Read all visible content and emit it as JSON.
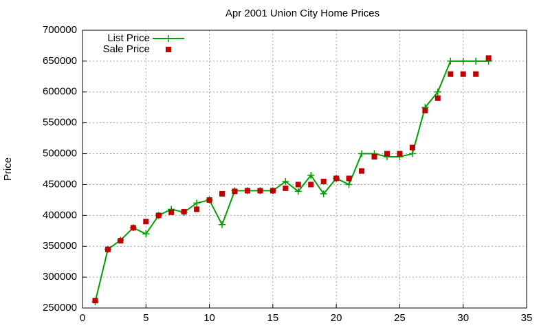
{
  "chart_data": {
    "type": "line",
    "title": "Apr 2001 Union City Home Prices",
    "y_label": "Price",
    "x": [
      1,
      2,
      3,
      4,
      5,
      6,
      7,
      8,
      9,
      10,
      11,
      12,
      13,
      14,
      15,
      16,
      17,
      18,
      19,
      20,
      21,
      22,
      23,
      24,
      25,
      26,
      27,
      28,
      29,
      30,
      31,
      32
    ],
    "series": [
      {
        "name": "List Price",
        "color": "#00a000",
        "line": true,
        "marker": "plus",
        "values": [
          260000,
          345000,
          360000,
          380000,
          370000,
          400000,
          410000,
          405000,
          420000,
          425000,
          385000,
          440000,
          440000,
          440000,
          440000,
          455000,
          439000,
          465000,
          435000,
          460000,
          450000,
          500000,
          500000,
          495000,
          495000,
          500000,
          575000,
          600000,
          650000,
          650000,
          650000,
          650000
        ]
      },
      {
        "name": "Sale Price",
        "color": "#c00000",
        "line": false,
        "marker": "square",
        "values": [
          262000,
          345000,
          359000,
          380000,
          390000,
          400000,
          405000,
          406000,
          410000,
          425000,
          435000,
          439000,
          440000,
          440000,
          440000,
          444000,
          450000,
          450000,
          455000,
          460000,
          460000,
          472000,
          495000,
          500000,
          500000,
          510000,
          570000,
          590000,
          629000,
          629000,
          629000,
          655000
        ]
      }
    ],
    "xlim": [
      0,
      35
    ],
    "xticks": [
      0,
      5,
      10,
      15,
      20,
      25,
      30,
      35
    ],
    "ylim": [
      250000,
      700000
    ],
    "yticks": [
      250000,
      300000,
      350000,
      400000,
      450000,
      500000,
      550000,
      600000,
      650000,
      700000
    ],
    "grid": true,
    "legend": "top-left"
  }
}
